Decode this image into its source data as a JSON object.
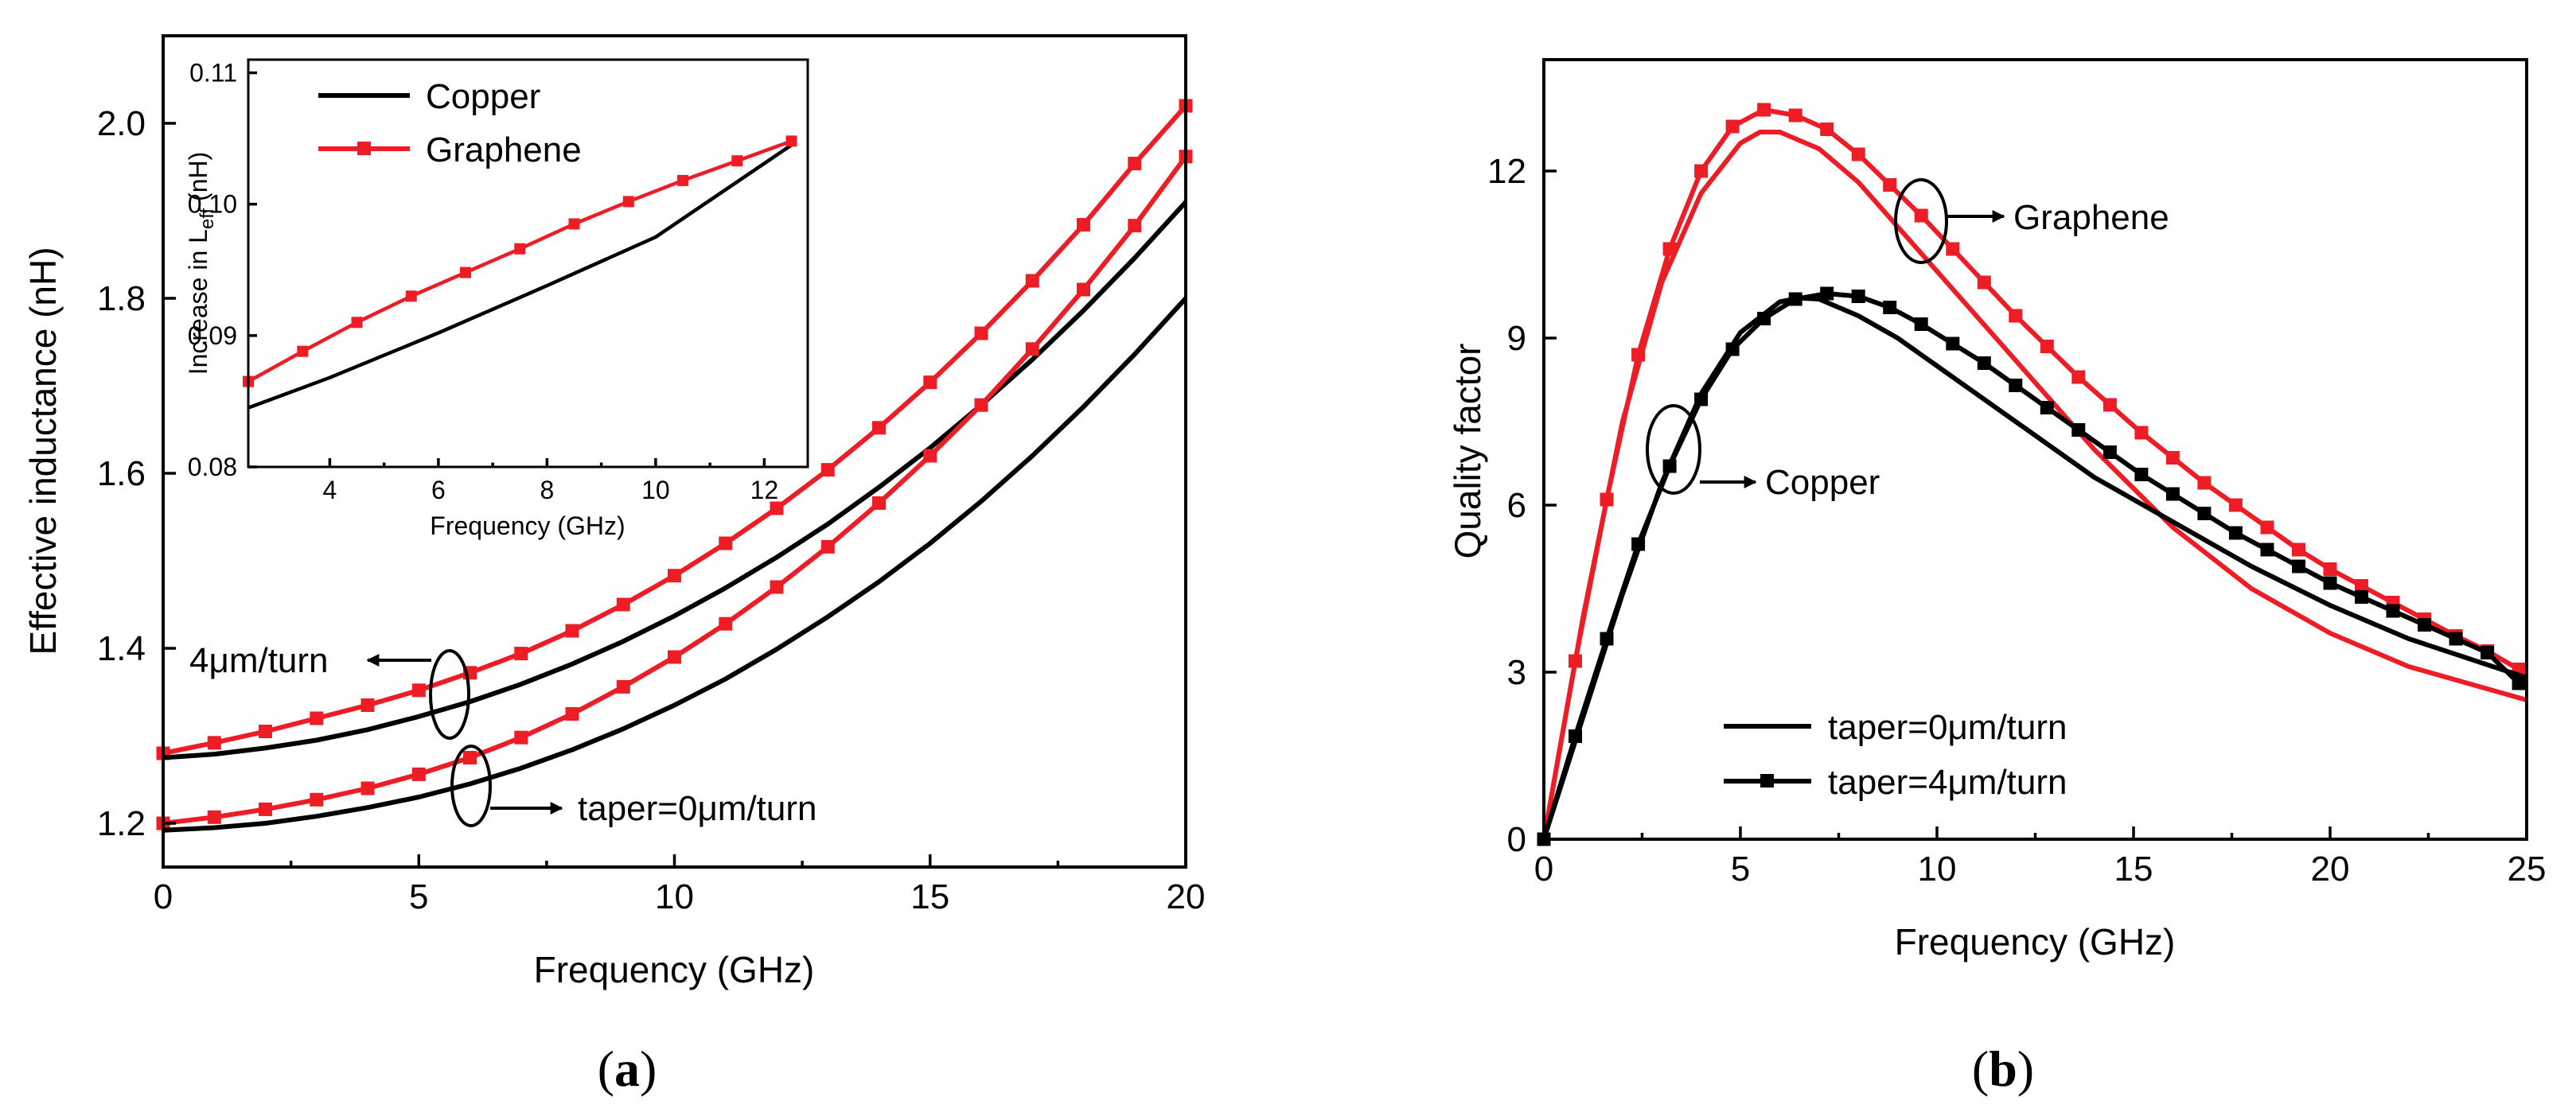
{
  "colors": {
    "copper": "#000000",
    "graphene": "#ee1c24"
  },
  "chart_data": [
    {
      "id": "a",
      "type": "line",
      "panel_label": "a",
      "xlabel": "Frequency (GHz)",
      "ylabel": "Effective inductance (nH)",
      "xlim": [
        0,
        20
      ],
      "ylim": [
        1.15,
        2.1
      ],
      "xticks": [
        0,
        5,
        10,
        15,
        20
      ],
      "yticks": [
        1.2,
        1.4,
        1.6,
        1.8,
        2.0
      ],
      "ytick_labels": [
        "1.2",
        "1.4",
        "1.6",
        "1.8",
        "2.0"
      ],
      "annotations": [
        {
          "text": "4μm/turn",
          "ellipse_at": [
            5.6,
            1.355
          ],
          "arrow": "left"
        },
        {
          "text": "taper=0μm/turn",
          "ellipse_at": [
            6.0,
            1.245
          ],
          "arrow": "right"
        }
      ],
      "series": [
        {
          "name": "Graphene",
          "taper": "4μm/turn",
          "marker": "square",
          "x": [
            0,
            1,
            2,
            3,
            4,
            5,
            6,
            7,
            8,
            9,
            10,
            11,
            12,
            13,
            14,
            15,
            16,
            17,
            18,
            19,
            20
          ],
          "values": [
            1.28,
            1.292,
            1.305,
            1.32,
            1.335,
            1.352,
            1.372,
            1.394,
            1.42,
            1.45,
            1.483,
            1.52,
            1.56,
            1.604,
            1.652,
            1.704,
            1.76,
            1.82,
            1.884,
            1.954,
            2.02
          ]
        },
        {
          "name": "Copper",
          "taper": "4μm/turn",
          "marker": "none",
          "x": [
            0,
            1,
            2,
            3,
            4,
            5,
            6,
            7,
            8,
            9,
            10,
            11,
            12,
            13,
            14,
            15,
            16,
            17,
            18,
            19,
            20
          ],
          "values": [
            1.275,
            1.279,
            1.286,
            1.295,
            1.307,
            1.322,
            1.339,
            1.359,
            1.382,
            1.408,
            1.437,
            1.469,
            1.504,
            1.542,
            1.584,
            1.629,
            1.678,
            1.73,
            1.786,
            1.846,
            1.91
          ]
        },
        {
          "name": "Graphene",
          "taper": "taper=0μm/turn",
          "marker": "square",
          "x": [
            0,
            1,
            2,
            3,
            4,
            5,
            6,
            7,
            8,
            9,
            10,
            11,
            12,
            13,
            14,
            15,
            16,
            17,
            18,
            19,
            20
          ],
          "values": [
            1.2,
            1.207,
            1.216,
            1.227,
            1.24,
            1.256,
            1.275,
            1.298,
            1.325,
            1.356,
            1.39,
            1.428,
            1.47,
            1.516,
            1.566,
            1.62,
            1.678,
            1.742,
            1.81,
            1.883,
            1.962
          ]
        },
        {
          "name": "Copper",
          "taper": "taper=0μm/turn",
          "marker": "none",
          "x": [
            0,
            1,
            2,
            3,
            4,
            5,
            6,
            7,
            8,
            9,
            10,
            11,
            12,
            13,
            14,
            15,
            16,
            17,
            18,
            19,
            20
          ],
          "values": [
            1.192,
            1.195,
            1.2,
            1.208,
            1.218,
            1.23,
            1.245,
            1.263,
            1.284,
            1.308,
            1.335,
            1.365,
            1.399,
            1.436,
            1.476,
            1.52,
            1.568,
            1.62,
            1.676,
            1.736,
            1.8
          ]
        }
      ],
      "inset": {
        "type": "line",
        "xlabel": "Frequency (GHz)",
        "ylabel": "Increase in Leff (nH)",
        "ylabel_main": "Increase in L",
        "ylabel_sub": "eff",
        "ylabel_tail": " (nH)",
        "xlim": [
          2.5,
          12.8
        ],
        "ylim": [
          0.08,
          0.111
        ],
        "xticks": [
          4,
          6,
          8,
          10,
          12
        ],
        "yticks": [
          0.08,
          0.09,
          0.1,
          0.11
        ],
        "ytick_labels": [
          "0.08",
          "0.09",
          "0.10",
          "0.11"
        ],
        "legend": [
          "Copper",
          "Graphene"
        ],
        "series": [
          {
            "name": "Copper",
            "marker": "none",
            "x": [
              2.5,
              4,
              6,
              8,
              10,
              12.5
            ],
            "values": [
              0.0845,
              0.0868,
              0.0902,
              0.0938,
              0.0975,
              0.1045
            ]
          },
          {
            "name": "Graphene",
            "marker": "square",
            "x": [
              2.5,
              3.5,
              4.5,
              5.5,
              6.5,
              7.5,
              8.5,
              9.5,
              10.5,
              11.5,
              12.5
            ],
            "values": [
              0.0865,
              0.0888,
              0.091,
              0.093,
              0.0948,
              0.0966,
              0.0985,
              0.1002,
              0.1018,
              0.1033,
              0.1048
            ]
          }
        ]
      }
    },
    {
      "id": "b",
      "type": "line",
      "panel_label": "b",
      "xlabel": "Frequency (GHz)",
      "ylabel": "Quality factor",
      "xlim": [
        0,
        25
      ],
      "ylim": [
        0,
        14
      ],
      "xticks": [
        0,
        5,
        10,
        15,
        20,
        25
      ],
      "yticks": [
        0,
        3,
        6,
        9,
        12
      ],
      "ytick_labels": [
        "0",
        "3",
        "6",
        "9",
        "12"
      ],
      "legend": [
        "taper=0μm/turn",
        "taper=4μm/turn"
      ],
      "annotations": [
        {
          "text": "Graphene",
          "ellipse_at": [
            9.6,
            11.2
          ],
          "arrow": "right"
        },
        {
          "text": "Copper",
          "ellipse_at": [
            3.3,
            6.85
          ],
          "arrow": "right"
        }
      ],
      "series": [
        {
          "name": "Graphene",
          "taper": "taper=0μm/turn",
          "marker": "none",
          "x": [
            0,
            1,
            2,
            3,
            4,
            5,
            5.5,
            6,
            7,
            8,
            9,
            10,
            12,
            14,
            16,
            18,
            20,
            22,
            25
          ],
          "values": [
            0,
            4.0,
            7.5,
            10.0,
            11.6,
            12.5,
            12.7,
            12.7,
            12.4,
            11.8,
            11.0,
            10.2,
            8.6,
            7.0,
            5.6,
            4.5,
            3.7,
            3.1,
            2.5
          ]
        },
        {
          "name": "Graphene",
          "taper": "taper=4μm/turn",
          "marker": "square",
          "x": [
            0,
            0.8,
            1.6,
            2.4,
            3.2,
            4.0,
            4.8,
            5.6,
            6.4,
            7.2,
            8.0,
            8.8,
            9.6,
            10.4,
            11.2,
            12.0,
            12.8,
            13.6,
            14.4,
            15.2,
            16.0,
            16.8,
            17.6,
            18.4,
            19.2,
            20.0,
            20.8,
            21.6,
            22.4,
            23.2,
            24.0,
            24.8
          ],
          "values": [
            0,
            3.2,
            6.1,
            8.7,
            10.6,
            12.0,
            12.8,
            13.1,
            13.0,
            12.75,
            12.3,
            11.75,
            11.2,
            10.6,
            10.0,
            9.4,
            8.85,
            8.3,
            7.8,
            7.3,
            6.85,
            6.4,
            6.0,
            5.6,
            5.2,
            4.85,
            4.55,
            4.25,
            3.95,
            3.65,
            3.38,
            3.05
          ]
        },
        {
          "name": "Copper",
          "taper": "taper=0μm/turn",
          "marker": "none",
          "x": [
            0,
            1,
            2,
            3,
            4,
            5,
            6,
            6.5,
            7,
            8,
            9,
            10,
            12,
            14,
            16,
            18,
            20,
            22,
            25
          ],
          "values": [
            0,
            2.2,
            4.4,
            6.4,
            8.0,
            9.1,
            9.65,
            9.72,
            9.7,
            9.4,
            9.0,
            8.5,
            7.5,
            6.5,
            5.7,
            4.9,
            4.2,
            3.6,
            2.9
          ]
        },
        {
          "name": "Copper",
          "taper": "taper=4μm/turn",
          "marker": "square",
          "x": [
            0,
            0.8,
            1.6,
            2.4,
            3.2,
            4.0,
            4.8,
            5.6,
            6.4,
            7.2,
            8.0,
            8.8,
            9.6,
            10.4,
            11.2,
            12.0,
            12.8,
            13.6,
            14.4,
            15.2,
            16.0,
            16.8,
            17.6,
            18.4,
            19.2,
            20.0,
            20.8,
            21.6,
            22.4,
            23.2,
            24.0,
            24.8
          ],
          "values": [
            0,
            1.85,
            3.6,
            5.3,
            6.7,
            7.9,
            8.8,
            9.35,
            9.7,
            9.8,
            9.75,
            9.55,
            9.25,
            8.9,
            8.55,
            8.15,
            7.75,
            7.35,
            6.95,
            6.55,
            6.2,
            5.85,
            5.5,
            5.2,
            4.9,
            4.6,
            4.35,
            4.1,
            3.85,
            3.6,
            3.35,
            2.8
          ]
        }
      ]
    }
  ]
}
